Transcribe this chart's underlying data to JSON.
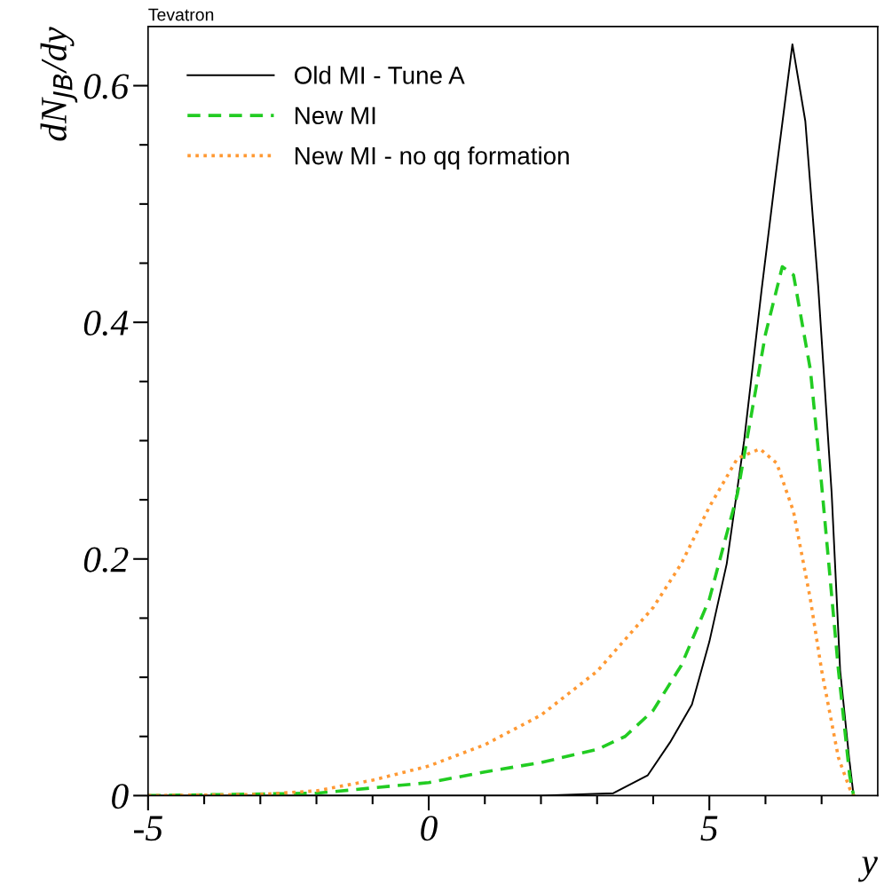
{
  "chart_data": {
    "type": "line",
    "xlabel": "y",
    "ylabel": "dN$_{JB}$/dy",
    "annotations": [
      "Tevatron"
    ],
    "xlim": [
      -5,
      8
    ],
    "ylim": [
      0,
      0.65
    ],
    "xticks": [
      {
        "value": -5,
        "label": "-5"
      },
      {
        "value": -4,
        "label": null
      },
      {
        "value": -3,
        "label": null
      },
      {
        "value": -2,
        "label": null
      },
      {
        "value": -1,
        "label": null
      },
      0,
      {
        "value": 1,
        "label": null
      },
      {
        "value": 2,
        "label": null
      },
      {
        "value": 3,
        "label": null
      },
      {
        "value": 4,
        "label": null
      },
      5,
      {
        "value": 6,
        "label": null
      },
      {
        "value": 7,
        "label": null
      }
    ],
    "yticks": [
      0,
      {
        "value": 0.05,
        "label": null
      },
      {
        "value": 0.1,
        "label": null
      },
      {
        "value": 0.15,
        "label": null
      },
      0.2,
      {
        "value": 0.25,
        "label": null
      },
      {
        "value": 0.3,
        "label": null
      },
      {
        "value": 0.35,
        "label": null
      },
      0.4,
      {
        "value": 0.45,
        "label": null
      },
      {
        "value": 0.5,
        "label": null
      },
      {
        "value": 0.55,
        "label": null
      },
      0.6
    ],
    "grid": false,
    "legend": "top left",
    "marker": "none",
    "series": [
      {
        "name": "Old MI - Tune A",
        "color": "#000000",
        "line_style": "solid",
        "x": [
          -5,
          2,
          3.29,
          3.9,
          4.3,
          4.69,
          5.0,
          5.31,
          5.62,
          5.93,
          6.17,
          6.48,
          6.71,
          6.94,
          7.18,
          7.33,
          7.49,
          7.57
        ],
        "values": [
          0,
          0,
          0.002,
          0.017,
          0.045,
          0.077,
          0.13,
          0.196,
          0.3,
          0.427,
          0.52,
          0.635,
          0.57,
          0.43,
          0.255,
          0.106,
          0.032,
          0
        ]
      },
      {
        "name": "New MI",
        "color": "#22cc22",
        "line_style": "dashed",
        "x": [
          -5,
          -2,
          0,
          1,
          2,
          3,
          3.5,
          4,
          4.5,
          5,
          5.5,
          6,
          6.3,
          6.5,
          6.8,
          7,
          7.3,
          7.5,
          7.57
        ],
        "values": [
          0,
          0.002,
          0.011,
          0.02,
          0.028,
          0.039,
          0.05,
          0.072,
          0.11,
          0.166,
          0.255,
          0.39,
          0.447,
          0.44,
          0.36,
          0.263,
          0.106,
          0.017,
          0
        ]
      },
      {
        "name": "New MI - no qq formation",
        "color": "#ff9933",
        "line_style": "dotted",
        "x": [
          -5,
          -3,
          -2,
          -1,
          0,
          1,
          2,
          3,
          4,
          4.5,
          5,
          5.5,
          5.9,
          6.2,
          6.5,
          6.8,
          7,
          7.3,
          7.5,
          7.57
        ],
        "values": [
          0,
          0.001,
          0.004,
          0.013,
          0.025,
          0.043,
          0.068,
          0.105,
          0.159,
          0.196,
          0.244,
          0.285,
          0.293,
          0.281,
          0.24,
          0.166,
          0.106,
          0.032,
          0.006,
          0
        ]
      }
    ]
  }
}
